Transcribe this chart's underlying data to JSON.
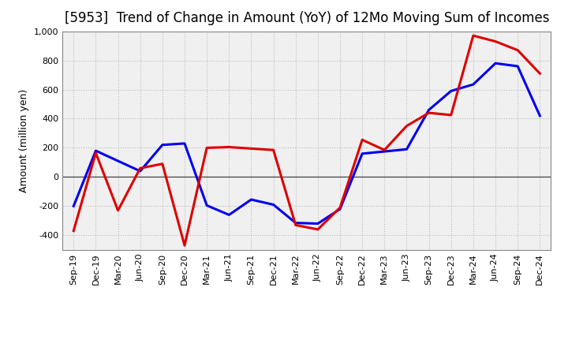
{
  "title": "[5953]  Trend of Change in Amount (YoY) of 12Mo Moving Sum of Incomes",
  "ylabel": "Amount (million yen)",
  "background_color": "#ffffff",
  "plot_bg_color": "#f0f0f0",
  "grid_color": "#bbbbbb",
  "xlabels": [
    "Sep-19",
    "Dec-19",
    "Mar-20",
    "Jun-20",
    "Sep-20",
    "Dec-20",
    "Mar-21",
    "Jun-21",
    "Sep-21",
    "Dec-21",
    "Mar-22",
    "Jun-22",
    "Sep-22",
    "Dec-22",
    "Mar-23",
    "Jun-23",
    "Sep-23",
    "Dec-23",
    "Mar-24",
    "Jun-24",
    "Sep-24",
    "Dec-24"
  ],
  "ordinary_income": [
    -200,
    180,
    110,
    40,
    220,
    230,
    -195,
    -260,
    -155,
    -190,
    -315,
    -320,
    -220,
    160,
    175,
    190,
    460,
    590,
    635,
    780,
    760,
    420
  ],
  "net_income": [
    -370,
    165,
    -230,
    60,
    90,
    -470,
    200,
    205,
    195,
    185,
    -330,
    -360,
    -210,
    255,
    185,
    350,
    440,
    425,
    970,
    930,
    870,
    710
  ],
  "ordinary_income_color": "#0000ee",
  "net_income_color": "#dd0000",
  "ylim": [
    -500,
    1000
  ],
  "yticks": [
    -400,
    -200,
    0,
    200,
    400,
    600,
    800,
    1000
  ],
  "line_width": 2.2,
  "title_fontsize": 12,
  "axis_fontsize": 9,
  "tick_fontsize": 8,
  "legend_fontsize": 10
}
